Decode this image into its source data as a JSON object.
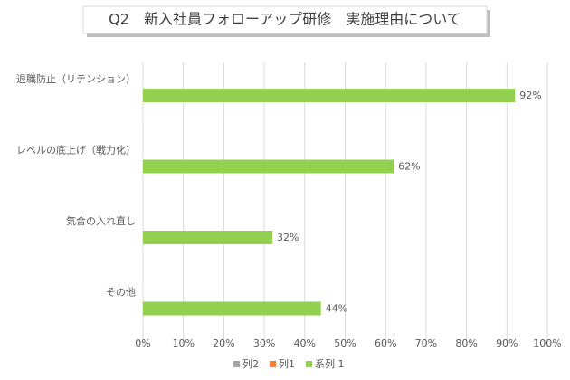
{
  "chart_data": {
    "type": "bar",
    "orientation": "horizontal",
    "title": "Q2　新入社員フォローアップ研修　実施理由について",
    "categories": [
      "退職防止（リテンション）",
      "レベルの底上げ（戦力化）",
      "気合の入れ直し",
      "その他"
    ],
    "series": [
      {
        "name": "列2",
        "color": "#a5a5a5",
        "values": [
          null,
          null,
          null,
          null
        ]
      },
      {
        "name": "列1",
        "color": "#ed7d31",
        "values": [
          null,
          null,
          null,
          null
        ]
      },
      {
        "name": "系列 1",
        "color": "#92d050",
        "values": [
          92,
          62,
          32,
          44
        ],
        "value_labels": [
          "92%",
          "62%",
          "32%",
          "44%"
        ]
      }
    ],
    "xlim": [
      0,
      100
    ],
    "xticks": [
      {
        "value": 0,
        "label": "0%"
      },
      {
        "value": 10,
        "label": "10%"
      },
      {
        "value": 20,
        "label": "20%"
      },
      {
        "value": 30,
        "label": "30%"
      },
      {
        "value": 40,
        "label": "40%"
      },
      {
        "value": 50,
        "label": "50%"
      },
      {
        "value": 60,
        "label": "60%"
      },
      {
        "value": 70,
        "label": "70%"
      },
      {
        "value": 80,
        "label": "80%"
      },
      {
        "value": 90,
        "label": "90%"
      },
      {
        "value": 100,
        "label": "100%"
      }
    ],
    "grid": true,
    "legend": "bottom"
  }
}
